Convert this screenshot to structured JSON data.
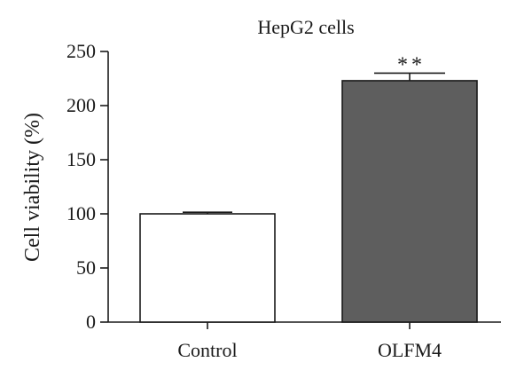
{
  "chart_data": {
    "type": "bar",
    "title": "HepG2 cells",
    "xlabel": "",
    "ylabel": "Cell viability (%)",
    "ylim": [
      0,
      250
    ],
    "yticks": [
      0,
      50,
      100,
      150,
      200,
      250
    ],
    "categories": [
      "Control",
      "OLFM4"
    ],
    "values": [
      100,
      223
    ],
    "errors": [
      1.5,
      7
    ],
    "bar_colors": [
      "#ffffff",
      "#5e5e5e"
    ],
    "annotations": [
      "",
      "**"
    ],
    "grid": false,
    "legend": "none"
  }
}
